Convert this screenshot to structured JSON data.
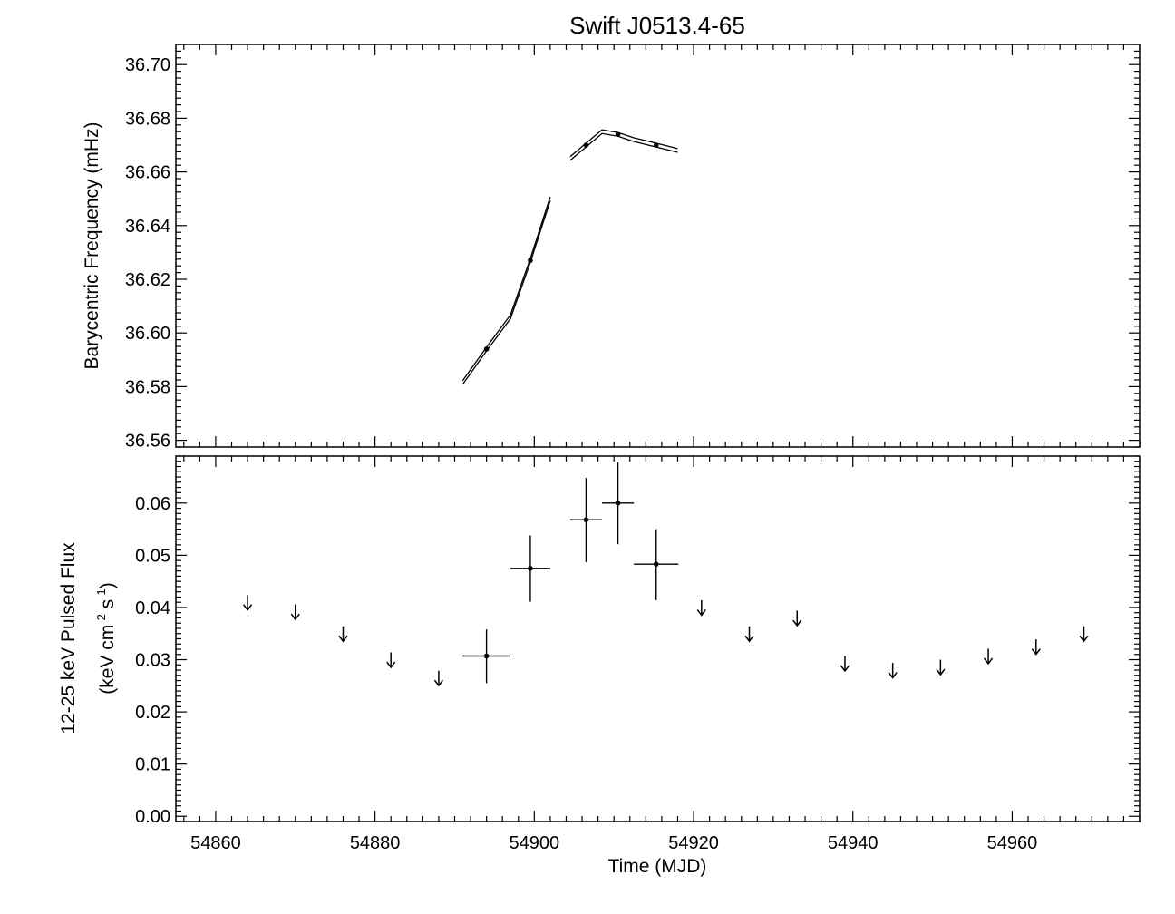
{
  "chart_data": [
    {
      "type": "line",
      "title": "Swift J0513.4-65",
      "ylabel": "Barycentric Frequency (mHz)",
      "xlabel": "",
      "xlim": [
        54855,
        54976
      ],
      "ylim": [
        36.5575,
        36.7075
      ],
      "yticks": [
        "36.56",
        "36.58",
        "36.60",
        "36.62",
        "36.64",
        "36.66",
        "36.68",
        "36.70"
      ],
      "series": [
        {
          "segments": [
            [
              [
                54891.0,
                36.5815
              ],
              [
                54894.0,
                36.594
              ],
              [
                54897.0,
                36.606
              ],
              [
                54899.5,
                36.627
              ],
              [
                54902.0,
                36.65
              ]
            ],
            [
              [
                54904.5,
                36.665
              ],
              [
                54906.5,
                36.67
              ],
              [
                54908.5,
                36.675
              ],
              [
                54910.5,
                36.674
              ],
              [
                54912.5,
                36.672
              ],
              [
                54915.3,
                36.67
              ],
              [
                54918.0,
                36.668
              ]
            ]
          ],
          "band_halfwidth": 0.0007
        }
      ],
      "points": [
        {
          "x": 54894.0,
          "y": 36.594
        },
        {
          "x": 54899.5,
          "y": 36.627
        },
        {
          "x": 54906.5,
          "y": 36.67
        },
        {
          "x": 54910.5,
          "y": 36.674
        },
        {
          "x": 54915.3,
          "y": 36.67
        }
      ]
    },
    {
      "type": "scatter",
      "ylabel": "12-25 keV Pulsed Flux",
      "ylabel2": "(keV cm",
      "ylabel2_sup1": "-2",
      "ylabel2_mid": " s",
      "ylabel2_sup2": "-1",
      "ylabel2_end": ")",
      "xlabel": "Time (MJD)",
      "xlim": [
        54855,
        54976
      ],
      "ylim": [
        -0.001,
        0.069
      ],
      "xticks": [
        "54860",
        "54880",
        "54900",
        "54920",
        "54940",
        "54960"
      ],
      "yticks": [
        "0.00",
        "0.01",
        "0.02",
        "0.03",
        "0.04",
        "0.05",
        "0.06"
      ],
      "detections": [
        {
          "x": 54894.0,
          "y": 0.0307,
          "xerr": 3.0,
          "ylo": 0.0255,
          "yhi": 0.0358
        },
        {
          "x": 54899.5,
          "y": 0.0475,
          "xerr": 2.5,
          "ylo": 0.0411,
          "yhi": 0.0538
        },
        {
          "x": 54906.5,
          "y": 0.0568,
          "xerr": 2.0,
          "ylo": 0.0487,
          "yhi": 0.0648
        },
        {
          "x": 54910.5,
          "y": 0.06,
          "xerr": 2.0,
          "ylo": 0.0521,
          "yhi": 0.0678
        },
        {
          "x": 54915.3,
          "y": 0.0483,
          "xerr": 2.8,
          "ylo": 0.0414,
          "yhi": 0.055
        }
      ],
      "upper_limits": [
        {
          "x": 54864.0,
          "y": 0.041
        },
        {
          "x": 54870.0,
          "y": 0.0392
        },
        {
          "x": 54876.0,
          "y": 0.035
        },
        {
          "x": 54882.0,
          "y": 0.03
        },
        {
          "x": 54888.0,
          "y": 0.0265
        },
        {
          "x": 54921.0,
          "y": 0.04
        },
        {
          "x": 54927.0,
          "y": 0.035
        },
        {
          "x": 54933.0,
          "y": 0.038
        },
        {
          "x": 54939.0,
          "y": 0.0293
        },
        {
          "x": 54945.0,
          "y": 0.028
        },
        {
          "x": 54951.0,
          "y": 0.0286
        },
        {
          "x": 54957.0,
          "y": 0.0307
        },
        {
          "x": 54963.0,
          "y": 0.0325
        },
        {
          "x": 54969.0,
          "y": 0.035
        }
      ]
    }
  ]
}
